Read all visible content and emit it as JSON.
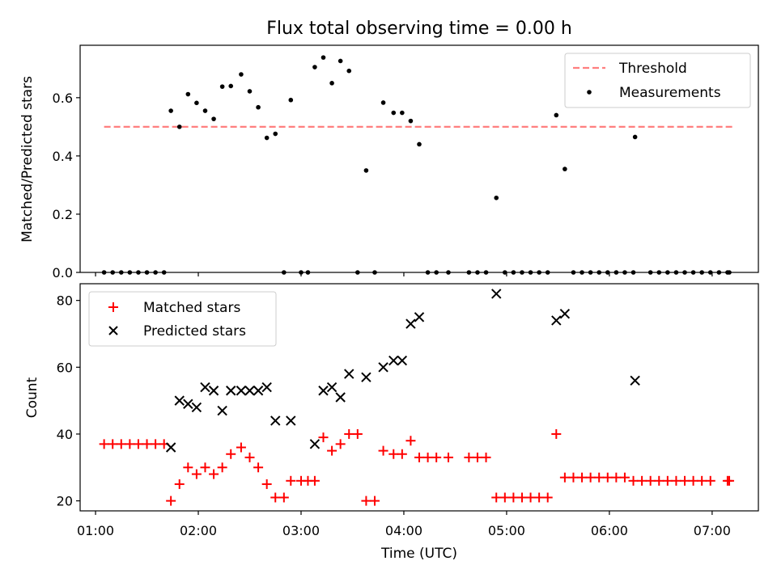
{
  "colors": {
    "threshold": "#ff7f7f",
    "measurements": "#000000",
    "matched": "#ff0000",
    "predicted": "#000000"
  },
  "chart_data": [
    {
      "type": "scatter",
      "title": "Flux total observing time = 0.00 h",
      "xlabel": "",
      "ylabel": "Matched/Predicted stars",
      "xlim": [
        "00:51",
        "07:27"
      ],
      "ylim": [
        0,
        0.78
      ],
      "yticks": [
        "0.0",
        "0.2",
        "0.4",
        "0.6"
      ],
      "legend_position": "top-right",
      "legend": [
        "Threshold",
        "Measurements"
      ],
      "threshold": {
        "name": "Threshold",
        "x": [
          "01:05",
          "07:12"
        ],
        "y": 0.5
      },
      "series": [
        {
          "name": "Measurements",
          "points": [
            [
              "01:05",
              0
            ],
            [
              "01:10",
              0
            ],
            [
              "01:15",
              0
            ],
            [
              "01:20",
              0
            ],
            [
              "01:25",
              0
            ],
            [
              "01:30",
              0
            ],
            [
              "01:35",
              0
            ],
            [
              "01:40",
              0
            ],
            [
              "01:44",
              0.555
            ],
            [
              "01:49",
              0.5
            ],
            [
              "01:54",
              0.612
            ],
            [
              "01:59",
              0.582
            ],
            [
              "02:04",
              0.555
            ],
            [
              "02:09",
              0.527
            ],
            [
              "02:14",
              0.638
            ],
            [
              "02:19",
              0.64
            ],
            [
              "02:25",
              0.68
            ],
            [
              "02:30",
              0.622
            ],
            [
              "02:35",
              0.567
            ],
            [
              "02:40",
              0.462
            ],
            [
              "02:45",
              0.476
            ],
            [
              "02:50",
              0
            ],
            [
              "02:54",
              0.592
            ],
            [
              "03:00",
              0
            ],
            [
              "03:04",
              0
            ],
            [
              "03:08",
              0.705
            ],
            [
              "03:13",
              0.738
            ],
            [
              "03:18",
              0.65
            ],
            [
              "03:23",
              0.726
            ],
            [
              "03:28",
              0.692
            ],
            [
              "03:33",
              0
            ],
            [
              "03:38",
              0.35
            ],
            [
              "03:43",
              0
            ],
            [
              "03:48",
              0.583
            ],
            [
              "03:54",
              0.548
            ],
            [
              "03:59",
              0.548
            ],
            [
              "04:04",
              0.52
            ],
            [
              "04:09",
              0.44
            ],
            [
              "04:14",
              0
            ],
            [
              "04:19",
              0
            ],
            [
              "04:26",
              0
            ],
            [
              "04:38",
              0
            ],
            [
              "04:43",
              0
            ],
            [
              "04:48",
              0
            ],
            [
              "04:54",
              0.256
            ],
            [
              "04:59",
              0
            ],
            [
              "05:04",
              0
            ],
            [
              "05:09",
              0
            ],
            [
              "05:14",
              0
            ],
            [
              "05:19",
              0
            ],
            [
              "05:24",
              0
            ],
            [
              "05:29",
              0.54
            ],
            [
              "05:34",
              0.355
            ],
            [
              "05:39",
              0
            ],
            [
              "05:44",
              0
            ],
            [
              "05:49",
              0
            ],
            [
              "05:54",
              0
            ],
            [
              "05:59",
              0
            ],
            [
              "06:04",
              0
            ],
            [
              "06:09",
              0
            ],
            [
              "06:14",
              0
            ],
            [
              "06:15",
              0.465
            ],
            [
              "06:24",
              0
            ],
            [
              "06:29",
              0
            ],
            [
              "06:34",
              0
            ],
            [
              "06:39",
              0
            ],
            [
              "06:44",
              0
            ],
            [
              "06:49",
              0
            ],
            [
              "06:54",
              0
            ],
            [
              "06:59",
              0
            ],
            [
              "07:04",
              0
            ],
            [
              "07:09",
              0
            ],
            [
              "07:10",
              0
            ]
          ]
        }
      ]
    },
    {
      "type": "scatter",
      "title": "",
      "xlabel": "Time (UTC)",
      "ylabel": "Count",
      "xlim": [
        "00:51",
        "07:27"
      ],
      "ylim": [
        17,
        85
      ],
      "xticks": [
        "01:00",
        "02:00",
        "03:00",
        "04:00",
        "05:00",
        "06:00",
        "07:00"
      ],
      "yticks": [
        "20",
        "40",
        "60",
        "80"
      ],
      "legend_position": "top-left",
      "legend": [
        "Matched stars",
        "Predicted stars"
      ],
      "series": [
        {
          "name": "Matched stars",
          "points": [
            [
              "01:05",
              37
            ],
            [
              "01:10",
              37
            ],
            [
              "01:15",
              37
            ],
            [
              "01:20",
              37
            ],
            [
              "01:25",
              37
            ],
            [
              "01:30",
              37
            ],
            [
              "01:35",
              37
            ],
            [
              "01:40",
              37
            ],
            [
              "01:44",
              20
            ],
            [
              "01:49",
              25
            ],
            [
              "01:54",
              30
            ],
            [
              "01:59",
              28
            ],
            [
              "02:04",
              30
            ],
            [
              "02:09",
              28
            ],
            [
              "02:14",
              30
            ],
            [
              "02:19",
              34
            ],
            [
              "02:25",
              36
            ],
            [
              "02:30",
              33
            ],
            [
              "02:35",
              30
            ],
            [
              "02:40",
              25
            ],
            [
              "02:45",
              21
            ],
            [
              "02:50",
              21
            ],
            [
              "02:54",
              26
            ],
            [
              "03:00",
              26
            ],
            [
              "03:04",
              26
            ],
            [
              "03:08",
              26
            ],
            [
              "03:13",
              39
            ],
            [
              "03:18",
              35
            ],
            [
              "03:23",
              37
            ],
            [
              "03:28",
              40
            ],
            [
              "03:33",
              40
            ],
            [
              "03:38",
              20
            ],
            [
              "03:43",
              20
            ],
            [
              "03:48",
              35
            ],
            [
              "03:54",
              34
            ],
            [
              "03:59",
              34
            ],
            [
              "04:04",
              38
            ],
            [
              "04:09",
              33
            ],
            [
              "04:14",
              33
            ],
            [
              "04:19",
              33
            ],
            [
              "04:26",
              33
            ],
            [
              "04:38",
              33
            ],
            [
              "04:43",
              33
            ],
            [
              "04:48",
              33
            ],
            [
              "04:54",
              21
            ],
            [
              "04:59",
              21
            ],
            [
              "05:04",
              21
            ],
            [
              "05:09",
              21
            ],
            [
              "05:14",
              21
            ],
            [
              "05:19",
              21
            ],
            [
              "05:24",
              21
            ],
            [
              "05:29",
              40
            ],
            [
              "05:34",
              27
            ],
            [
              "05:39",
              27
            ],
            [
              "05:44",
              27
            ],
            [
              "05:49",
              27
            ],
            [
              "05:54",
              27
            ],
            [
              "05:59",
              27
            ],
            [
              "06:04",
              27
            ],
            [
              "06:09",
              27
            ],
            [
              "06:14",
              26
            ],
            [
              "06:19",
              26
            ],
            [
              "06:24",
              26
            ],
            [
              "06:29",
              26
            ],
            [
              "06:34",
              26
            ],
            [
              "06:39",
              26
            ],
            [
              "06:44",
              26
            ],
            [
              "06:49",
              26
            ],
            [
              "06:54",
              26
            ],
            [
              "06:59",
              26
            ],
            [
              "07:09",
              26
            ],
            [
              "07:10",
              26
            ]
          ]
        },
        {
          "name": "Predicted stars",
          "points": [
            [
              "01:44",
              36
            ],
            [
              "01:49",
              50
            ],
            [
              "01:54",
              49
            ],
            [
              "01:59",
              48
            ],
            [
              "02:04",
              54
            ],
            [
              "02:09",
              53
            ],
            [
              "02:14",
              47
            ],
            [
              "02:19",
              53
            ],
            [
              "02:25",
              53
            ],
            [
              "02:30",
              53
            ],
            [
              "02:35",
              53
            ],
            [
              "02:40",
              54
            ],
            [
              "02:45",
              44
            ],
            [
              "02:54",
              44
            ],
            [
              "03:08",
              37
            ],
            [
              "03:13",
              53
            ],
            [
              "03:18",
              54
            ],
            [
              "03:23",
              51
            ],
            [
              "03:28",
              58
            ],
            [
              "03:38",
              57
            ],
            [
              "03:48",
              60
            ],
            [
              "03:54",
              62
            ],
            [
              "03:59",
              62
            ],
            [
              "04:04",
              73
            ],
            [
              "04:09",
              75
            ],
            [
              "04:54",
              82
            ],
            [
              "05:29",
              74
            ],
            [
              "05:34",
              76
            ],
            [
              "06:15",
              56
            ]
          ]
        }
      ]
    }
  ]
}
